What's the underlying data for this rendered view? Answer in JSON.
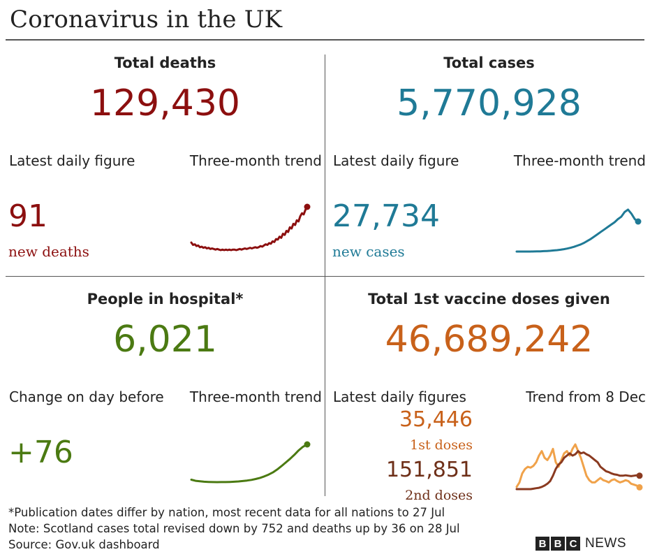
{
  "title": "Coronavirus in the UK",
  "panels": {
    "deaths": {
      "heading": "Total deaths",
      "total": "129,430",
      "sub_left": "Latest daily figure",
      "sub_right": "Three-month trend",
      "daily": "91",
      "daily_label": "new deaths",
      "color": "#8c0f0f"
    },
    "cases": {
      "heading": "Total cases",
      "total": "5,770,928",
      "sub_left": "Latest daily figure",
      "sub_right": "Three-month trend",
      "daily": "27,734",
      "daily_label": "new cases",
      "color": "#1f7a96"
    },
    "hospital": {
      "heading": "People in hospital*",
      "total": "6,021",
      "sub_left": "Change on day before",
      "sub_right": "Three-month trend",
      "daily": "+76",
      "color": "#4b7a12"
    },
    "vaccine": {
      "heading": "Total 1st vaccine doses given",
      "total": "46,689,242",
      "sub_left": "Latest daily figures",
      "sub_right": "Trend from 8 Dec",
      "first_value": "35,446",
      "first_label": "1st doses",
      "second_value": "151,851",
      "second_label": "2nd doses",
      "color_first": "#f0a24a",
      "color_second": "#8a3a20"
    }
  },
  "footnotes": {
    "line1": "*Publication dates differ by nation, most recent data for all nations to 27 Jul",
    "line2": "Note: Scotland cases total revised down by 752 and deaths up by 36 on 28 Jul",
    "line3": "Source: Gov.uk dashboard"
  },
  "logo": {
    "letters": [
      "B",
      "B",
      "C"
    ],
    "word": "NEWS"
  },
  "chart_data": [
    {
      "type": "line",
      "series": [
        {
          "values": [
            30,
            26,
            27,
            24,
            25,
            22,
            23,
            21,
            22,
            20,
            21,
            19,
            20,
            19,
            18,
            19,
            18,
            17,
            18,
            17,
            18,
            17,
            18,
            17,
            18,
            18,
            17,
            18,
            19,
            18,
            19,
            20,
            19,
            20,
            21,
            20,
            21,
            22,
            21,
            22,
            24,
            23,
            25,
            27,
            26,
            29,
            28,
            32,
            31,
            36,
            35,
            40,
            38,
            45,
            43,
            50,
            48,
            56,
            54,
            62,
            60,
            68,
            66,
            75,
            80,
            78,
            86,
            91
          ]
        }
      ],
      "grid": false
    },
    {
      "type": "line",
      "series": [
        {
          "values": [
            2,
            2,
            2,
            2,
            2,
            2.1,
            2.2,
            2.3,
            2.5,
            2.7,
            3,
            3.4,
            3.8,
            4.3,
            5,
            5.8,
            6.8,
            8,
            9.5,
            11,
            13,
            15.5,
            18,
            21,
            24,
            27,
            30,
            33,
            36,
            39,
            43,
            46,
            52,
            55,
            50,
            43,
            40
          ]
        }
      ],
      "grid": false
    },
    {
      "type": "line",
      "series": [
        {
          "values": [
            1200,
            1050,
            980,
            930,
            900,
            880,
            870,
            875,
            880,
            900,
            930,
            970,
            1020,
            1090,
            1180,
            1300,
            1450,
            1650,
            1900,
            2200,
            2600,
            3050,
            3550,
            4050,
            4600,
            5200,
            5700,
            6021
          ]
        }
      ],
      "grid": false
    },
    {
      "type": "line",
      "series": [
        {
          "name": "1st doses",
          "values": [
            15,
            25,
            45,
            55,
            60,
            58,
            62,
            70,
            85,
            95,
            80,
            75,
            85,
            100,
            70,
            60,
            75,
            90,
            95,
            85,
            100,
            110,
            95,
            80,
            60,
            40,
            30,
            25,
            25,
            30,
            35,
            30,
            28,
            25,
            30,
            32,
            28,
            25,
            27,
            30,
            28,
            22,
            20,
            18,
            14
          ]
        },
        {
          "name": "2nd doses",
          "values": [
            10,
            10,
            10,
            10,
            10,
            10,
            11,
            12,
            13,
            15,
            18,
            22,
            28,
            40,
            55,
            65,
            70,
            80,
            85,
            90,
            85,
            88,
            95,
            90,
            92,
            88,
            85,
            80,
            75,
            70,
            60,
            55,
            50,
            48,
            45,
            43,
            42,
            40,
            40,
            41,
            40,
            39,
            40,
            41,
            40
          ]
        }
      ],
      "grid": false
    }
  ]
}
